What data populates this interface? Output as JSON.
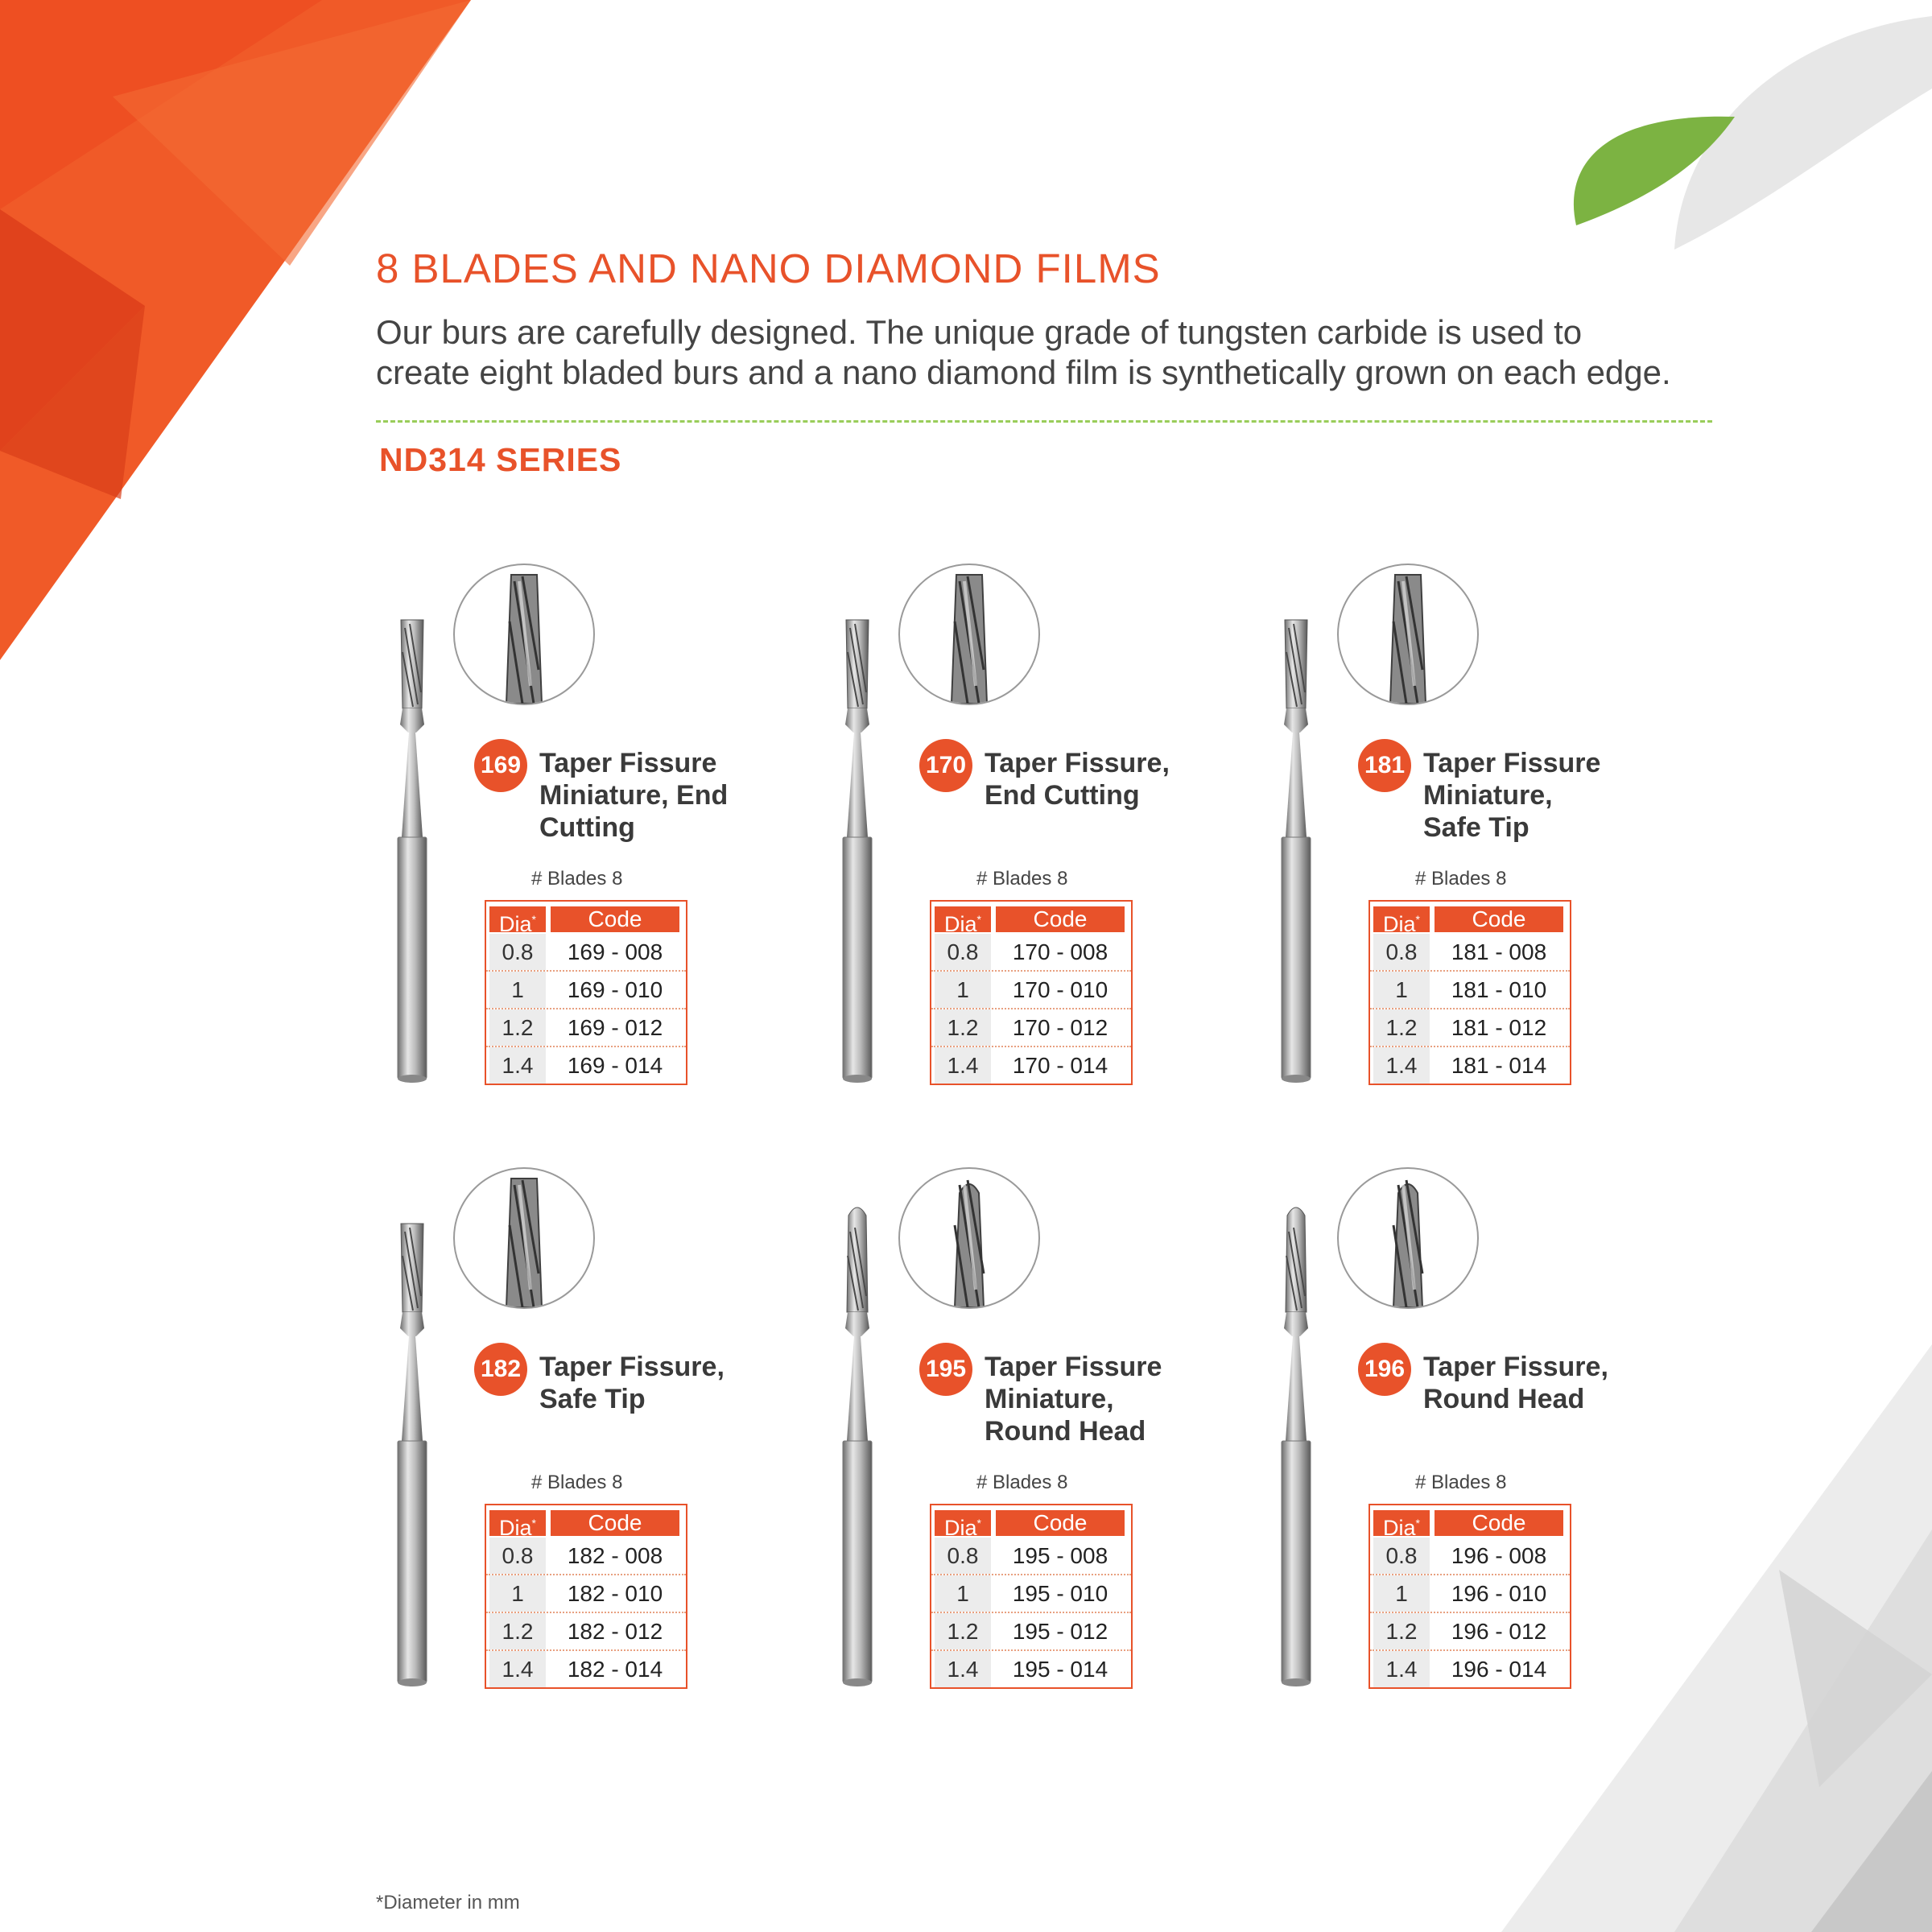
{
  "heading": "8 BLADES AND NANO DIAMOND FILMS",
  "intro_line1": "Our burs are carefully designed. The unique grade of tungsten carbide is used to",
  "intro_line2": "create eight bladed burs and a nano diamond film is synthetically grown on each edge.",
  "series_title": "ND314 SERIES",
  "footnote": "*Diameter in mm",
  "colors": {
    "accent": "#e8522a",
    "leaf": "#7cb342",
    "rule": "#9acd5a"
  },
  "table_headers": {
    "dia": "Dia",
    "dia_marker": "*",
    "code": "Code"
  },
  "products": [
    {
      "number": "169",
      "name": [
        "Taper Fissure",
        "Miniature, End",
        "Cutting"
      ],
      "blades": "# Blades 8",
      "rows": [
        {
          "dia": "0.8",
          "code": "169 - 008"
        },
        {
          "dia": "1",
          "code": "169 - 010"
        },
        {
          "dia": "1.2",
          "code": "169 - 012"
        },
        {
          "dia": "1.4",
          "code": "169 - 014"
        }
      ]
    },
    {
      "number": "170",
      "name": [
        "Taper Fissure,",
        "End Cutting"
      ],
      "blades": "# Blades 8",
      "rows": [
        {
          "dia": "0.8",
          "code": "170 - 008"
        },
        {
          "dia": "1",
          "code": "170 - 010"
        },
        {
          "dia": "1.2",
          "code": "170 - 012"
        },
        {
          "dia": "1.4",
          "code": "170 - 014"
        }
      ]
    },
    {
      "number": "181",
      "name": [
        "Taper Fissure",
        "Miniature,",
        "Safe Tip"
      ],
      "blades": "# Blades 8",
      "rows": [
        {
          "dia": "0.8",
          "code": "181 - 008"
        },
        {
          "dia": "1",
          "code": "181 - 010"
        },
        {
          "dia": "1.2",
          "code": "181 - 012"
        },
        {
          "dia": "1.4",
          "code": "181 - 014"
        }
      ]
    },
    {
      "number": "182",
      "name": [
        "Taper Fissure,",
        "Safe Tip"
      ],
      "blades": "# Blades 8",
      "rows": [
        {
          "dia": "0.8",
          "code": "182 - 008"
        },
        {
          "dia": "1",
          "code": "182 - 010"
        },
        {
          "dia": "1.2",
          "code": "182 - 012"
        },
        {
          "dia": "1.4",
          "code": "182 - 014"
        }
      ]
    },
    {
      "number": "195",
      "name": [
        "Taper Fissure",
        "Miniature,",
        "Round Head"
      ],
      "blades": "# Blades 8",
      "rows": [
        {
          "dia": "0.8",
          "code": "195 - 008"
        },
        {
          "dia": "1",
          "code": "195 - 010"
        },
        {
          "dia": "1.2",
          "code": "195 - 012"
        },
        {
          "dia": "1.4",
          "code": "195 - 014"
        }
      ]
    },
    {
      "number": "196",
      "name": [
        "Taper Fissure,",
        "Round Head"
      ],
      "blades": "# Blades 8",
      "rows": [
        {
          "dia": "0.8",
          "code": "196 - 008"
        },
        {
          "dia": "1",
          "code": "196 - 010"
        },
        {
          "dia": "1.2",
          "code": "196 - 012"
        },
        {
          "dia": "1.4",
          "code": "196 - 014"
        }
      ]
    }
  ]
}
